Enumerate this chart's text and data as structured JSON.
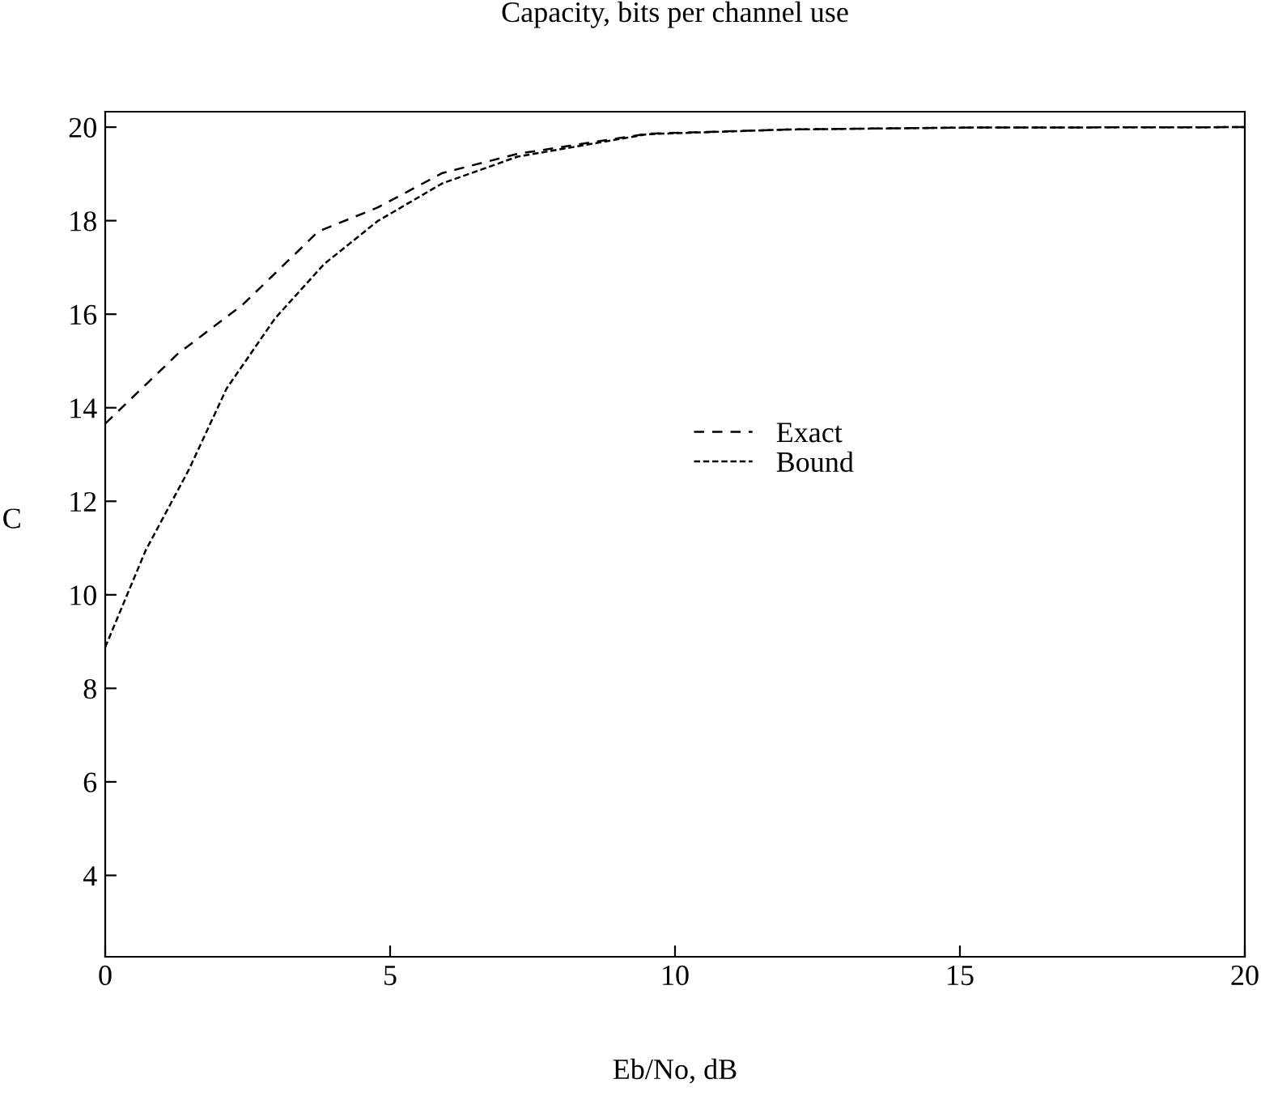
{
  "chart_data": {
    "type": "line",
    "title": "Capacity, bits per channel use",
    "xlabel": "Eb/No, dB",
    "ylabel": "C",
    "xlim": [
      0,
      20
    ],
    "xticks": [
      0,
      5,
      10,
      15,
      20
    ],
    "ylim": [
      2.26,
      20.33
    ],
    "yticks": [
      4,
      6,
      8,
      10,
      12,
      14,
      16,
      18,
      20
    ],
    "grid": false,
    "legend": "right",
    "marker": "none",
    "series": [
      {
        "name": "Exact",
        "color": "#000000",
        "line_style": "dashed",
        "x": [
          0,
          1.28,
          2.41,
          3.74,
          4.78,
          5.92,
          7.24,
          9.52,
          12,
          15,
          20
        ],
        "values": [
          13.66,
          15.16,
          16.2,
          17.77,
          18.28,
          19.02,
          19.43,
          19.86,
          19.95,
          19.99,
          20.0
        ]
      },
      {
        "name": "Bound",
        "color": "#000000",
        "line_style": "dotted",
        "x": [
          0,
          0.71,
          1.47,
          2.13,
          2.98,
          3.84,
          4.78,
          5.92,
          7.24,
          9.52,
          12,
          15,
          20
        ],
        "values": [
          8.88,
          10.95,
          12.68,
          14.41,
          15.91,
          17.07,
          17.99,
          18.8,
          19.37,
          19.85,
          19.95,
          19.99,
          20.0
        ]
      }
    ]
  }
}
